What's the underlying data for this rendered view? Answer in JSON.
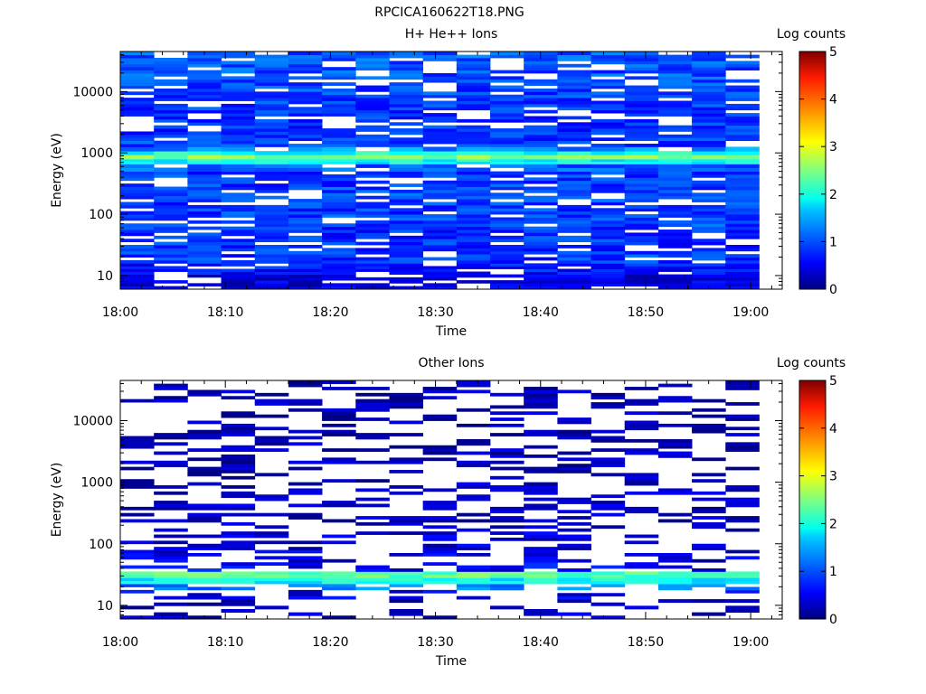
{
  "figure": {
    "title": "RPCICA160622T18.PNG"
  },
  "chart_data": [
    {
      "type": "heatmap",
      "title": "H+ He++ Ions",
      "xlabel": "Time",
      "ylabel": "Energy (eV)",
      "x_ticks": [
        "18:00",
        "18:10",
        "18:20",
        "18:30",
        "18:40",
        "18:50",
        "19:00"
      ],
      "xlim": [
        "18:00",
        "19:03"
      ],
      "x_range_minutes": [
        0,
        63
      ],
      "y_scale": "log",
      "ylim": [
        6,
        45000
      ],
      "y_ticks": [
        "10",
        "100",
        "1000",
        "10000"
      ],
      "colorbar": {
        "label": "Log counts",
        "ticks": [
          "0",
          "1",
          "2",
          "3",
          "4",
          "5"
        ],
        "range": [
          0,
          5
        ],
        "colormap": "jet"
      },
      "time_bins": 19,
      "bin_minutes": 3.2,
      "energy_bins_log10": [
        [
          0.78,
          1.02,
          0.45
        ],
        [
          1.02,
          1.2,
          0.7
        ],
        [
          1.2,
          1.4,
          0.9
        ],
        [
          1.4,
          1.6,
          0.85
        ],
        [
          1.6,
          1.8,
          0.85
        ],
        [
          1.8,
          2.0,
          0.95
        ],
        [
          2.0,
          2.2,
          0.9
        ],
        [
          2.2,
          2.45,
          0.95
        ],
        [
          2.45,
          2.7,
          0.9
        ],
        [
          2.7,
          2.82,
          1.1
        ],
        [
          2.82,
          2.9,
          1.9
        ],
        [
          2.9,
          2.97,
          2.55
        ],
        [
          2.97,
          3.03,
          1.95
        ],
        [
          3.03,
          3.1,
          1.3
        ],
        [
          3.1,
          3.3,
          0.9
        ],
        [
          3.3,
          3.6,
          0.85
        ],
        [
          3.6,
          3.9,
          0.9
        ],
        [
          3.9,
          4.2,
          0.95
        ],
        [
          4.2,
          4.5,
          1.0
        ],
        [
          4.5,
          4.65,
          1.05
        ]
      ],
      "fill_probability": 0.82,
      "bands_hint": "strong band near 700-1000 eV (~2.5 log counts), sparse low-energy fill"
    },
    {
      "type": "heatmap",
      "title": "Other Ions",
      "xlabel": "Time",
      "ylabel": "Energy (eV)",
      "x_ticks": [
        "18:00",
        "18:10",
        "18:20",
        "18:30",
        "18:40",
        "18:50",
        "19:00"
      ],
      "xlim": [
        "18:00",
        "19:03"
      ],
      "x_range_minutes": [
        0,
        63
      ],
      "y_scale": "log",
      "ylim": [
        6,
        45000
      ],
      "y_ticks": [
        "10",
        "100",
        "1000",
        "10000"
      ],
      "colorbar": {
        "label": "Log counts",
        "ticks": [
          "0",
          "1",
          "2",
          "3",
          "4",
          "5"
        ],
        "range": [
          0,
          5
        ],
        "colormap": "jet"
      },
      "time_bins": 19,
      "bin_minutes": 3.2,
      "energy_bins_log10": [
        [
          0.78,
          1.1,
          0.3
        ],
        [
          1.1,
          1.25,
          0.55
        ],
        [
          1.25,
          1.35,
          1.2
        ],
        [
          1.35,
          1.45,
          1.9
        ],
        [
          1.45,
          1.55,
          2.3
        ],
        [
          1.55,
          1.7,
          0.6
        ],
        [
          1.7,
          1.9,
          0.45
        ],
        [
          1.9,
          2.1,
          0.4
        ],
        [
          2.1,
          2.35,
          0.4
        ],
        [
          2.35,
          2.6,
          0.3
        ],
        [
          2.6,
          3.0,
          0.3
        ],
        [
          3.0,
          3.4,
          0.25
        ],
        [
          3.4,
          3.8,
          0.25
        ],
        [
          3.8,
          4.2,
          0.2
        ],
        [
          4.2,
          4.65,
          0.2
        ]
      ],
      "fill_probability": 0.35,
      "bands_hint": "strong band near 20-40 eV (~2 log counts), sparse high-energy fill"
    }
  ]
}
